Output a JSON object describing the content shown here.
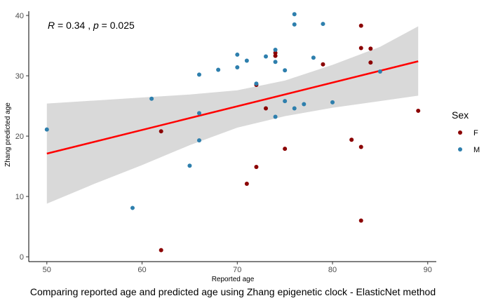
{
  "chart_data": {
    "type": "scatter",
    "title": "",
    "caption": "Comparing reported age and predicted age using Zhang epigenetic clock - ElasticNet method",
    "xlabel": "Reported age",
    "ylabel": "Zhang predicted age",
    "xlim": [
      48.1,
      90.9
    ],
    "ylim": [
      -0.8,
      40.7
    ],
    "x_ticks": [
      50,
      60,
      70,
      80,
      90
    ],
    "y_ticks": [
      0,
      10,
      20,
      30,
      40
    ],
    "grid": false,
    "annotation": {
      "r_symbol": "R",
      "r_text": " = 0.34 , ",
      "p_symbol": "p",
      "p_text": " = 0.025",
      "position": "top-left"
    },
    "legend": {
      "title": "Sex",
      "position": "right"
    },
    "regression": {
      "x": [
        50,
        89
      ],
      "y": [
        17.1,
        32.4
      ],
      "color": "#ff0000",
      "ribbon_upper": [
        {
          "x": 50,
          "y": 25.4
        },
        {
          "x": 55,
          "y": 25.9
        },
        {
          "x": 60,
          "y": 26.4
        },
        {
          "x": 65,
          "y": 26.9
        },
        {
          "x": 70,
          "y": 27.6
        },
        {
          "x": 75,
          "y": 29.2
        },
        {
          "x": 80,
          "y": 31.8
        },
        {
          "x": 85,
          "y": 34.8
        },
        {
          "x": 89,
          "y": 38.2
        }
      ],
      "ribbon_lower": [
        {
          "x": 50,
          "y": 8.8
        },
        {
          "x": 55,
          "y": 12.1
        },
        {
          "x": 60,
          "y": 15.2
        },
        {
          "x": 65,
          "y": 18.5
        },
        {
          "x": 70,
          "y": 21.4
        },
        {
          "x": 75,
          "y": 23.3
        },
        {
          "x": 80,
          "y": 24.7
        },
        {
          "x": 85,
          "y": 25.8
        },
        {
          "x": 89,
          "y": 26.7
        }
      ],
      "ribbon_color": "#d9d9d9"
    },
    "series": [
      {
        "name": "F",
        "color": "#8b0000",
        "points": [
          {
            "x": 62,
            "y": 20.8
          },
          {
            "x": 62,
            "y": 1.1
          },
          {
            "x": 71,
            "y": 12.1
          },
          {
            "x": 72,
            "y": 14.9
          },
          {
            "x": 72,
            "y": 28.5
          },
          {
            "x": 73,
            "y": 24.6
          },
          {
            "x": 74,
            "y": 33.8
          },
          {
            "x": 74,
            "y": 33.3
          },
          {
            "x": 75,
            "y": 17.9
          },
          {
            "x": 79,
            "y": 31.9
          },
          {
            "x": 82,
            "y": 19.4
          },
          {
            "x": 83,
            "y": 38.3
          },
          {
            "x": 83,
            "y": 34.6
          },
          {
            "x": 83,
            "y": 18.2
          },
          {
            "x": 83,
            "y": 6.0
          },
          {
            "x": 84,
            "y": 34.5
          },
          {
            "x": 84,
            "y": 32.2
          },
          {
            "x": 89,
            "y": 24.2
          }
        ]
      },
      {
        "name": "M",
        "color": "#2e7fad",
        "points": [
          {
            "x": 50,
            "y": 21.1
          },
          {
            "x": 59,
            "y": 8.1
          },
          {
            "x": 61,
            "y": 26.2
          },
          {
            "x": 65,
            "y": 15.1
          },
          {
            "x": 66,
            "y": 30.2
          },
          {
            "x": 66,
            "y": 23.8
          },
          {
            "x": 66,
            "y": 19.3
          },
          {
            "x": 68,
            "y": 31.0
          },
          {
            "x": 70,
            "y": 33.5
          },
          {
            "x": 70,
            "y": 31.4
          },
          {
            "x": 71,
            "y": 32.5
          },
          {
            "x": 72,
            "y": 28.7
          },
          {
            "x": 73,
            "y": 33.2
          },
          {
            "x": 74,
            "y": 34.3
          },
          {
            "x": 74,
            "y": 32.3
          },
          {
            "x": 74,
            "y": 23.2
          },
          {
            "x": 75,
            "y": 30.9
          },
          {
            "x": 75,
            "y": 25.8
          },
          {
            "x": 76,
            "y": 40.2
          },
          {
            "x": 76,
            "y": 38.5
          },
          {
            "x": 76,
            "y": 24.6
          },
          {
            "x": 77,
            "y": 25.3
          },
          {
            "x": 78,
            "y": 33.0
          },
          {
            "x": 79,
            "y": 38.6
          },
          {
            "x": 80,
            "y": 25.6
          },
          {
            "x": 85,
            "y": 30.7
          }
        ]
      }
    ]
  }
}
